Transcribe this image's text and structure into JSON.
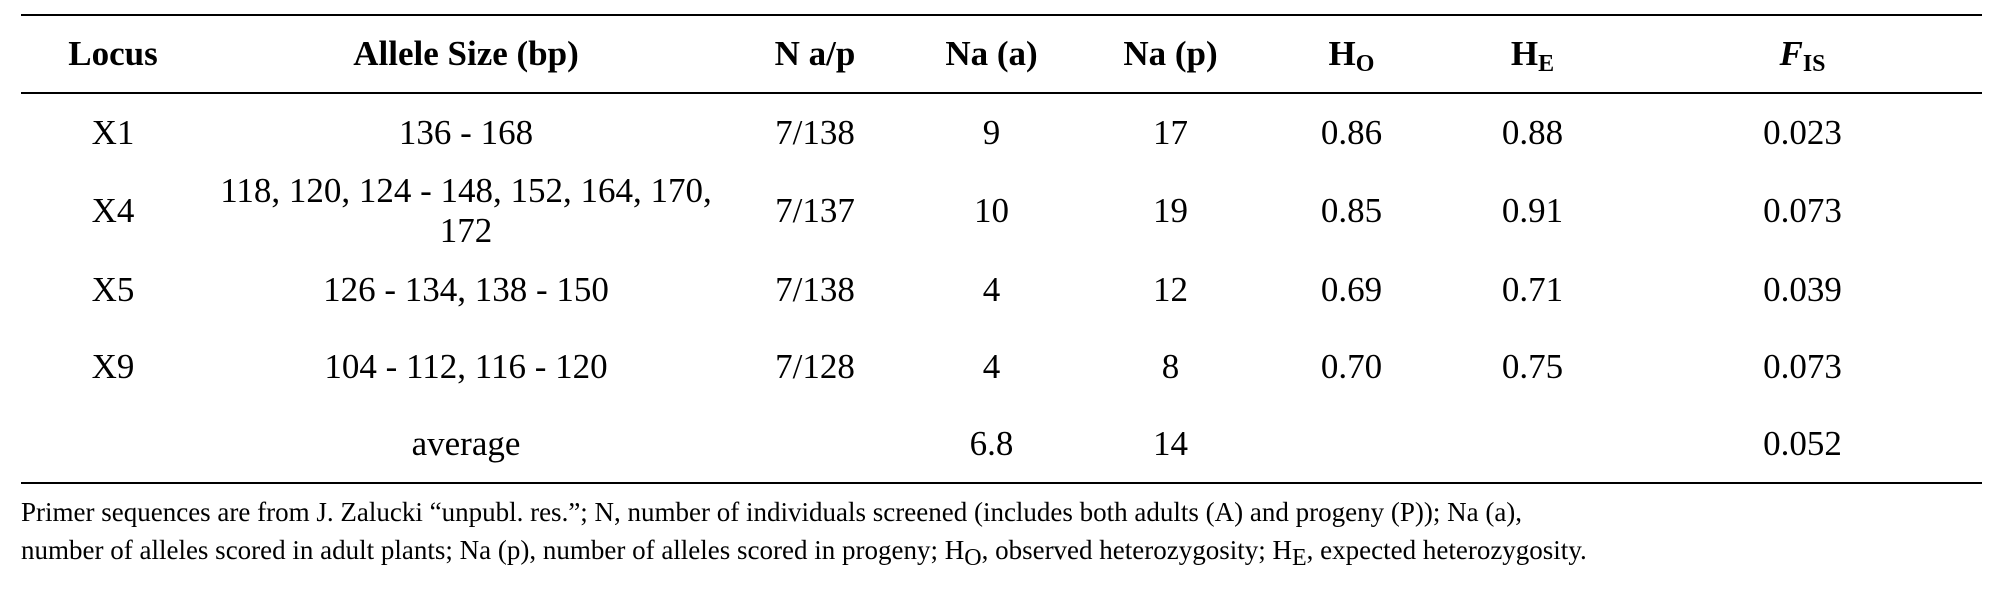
{
  "table": {
    "headers": {
      "locus": "Locus",
      "allele_size": "Allele Size (bp)",
      "n_ap": "N a/p",
      "na_a": "Na (a)",
      "na_p": "Na (p)",
      "ho_main": "H",
      "ho_sub": "O",
      "he_main": "H",
      "he_sub": "E",
      "fis_main": "F",
      "fis_sub": "IS"
    },
    "rows": [
      {
        "locus": "X1",
        "allele_size": "136 - 168",
        "n_ap": "7/138",
        "na_a": "9",
        "na_p": "17",
        "ho": "0.86",
        "he": "0.88",
        "fis": "0.023"
      },
      {
        "locus": "X4",
        "allele_size": "118, 120, 124 - 148, 152, 164, 170, 172",
        "n_ap": "7/137",
        "na_a": "10",
        "na_p": "19",
        "ho": "0.85",
        "he": "0.91",
        "fis": "0.073"
      },
      {
        "locus": "X5",
        "allele_size": "126 - 134, 138 - 150",
        "n_ap": "7/138",
        "na_a": "4",
        "na_p": "12",
        "ho": "0.69",
        "he": "0.71",
        "fis": "0.039"
      },
      {
        "locus": "X9",
        "allele_size": "104 - 112, 116 - 120",
        "n_ap": "7/128",
        "na_a": "4",
        "na_p": "8",
        "ho": "0.70",
        "he": "0.75",
        "fis": "0.073"
      }
    ],
    "average": {
      "label": "average",
      "na_a": "6.8",
      "na_p": "14",
      "fis": "0.052"
    }
  },
  "footnote": {
    "line1": "Primer sequences are from J. Zalucki “unpubl. res.”; N, number of individuals screened (includes both adults (A) and progeny (P)); Na (a),",
    "line2_a": "number of alleles scored in adult plants; Na (p), number of alleles scored in progeny; H",
    "line2_ho_sub": "O",
    "line2_b": ", observed heterozygosity; H",
    "line2_he_sub": "E",
    "line2_c": ", expected heterozygosity."
  }
}
